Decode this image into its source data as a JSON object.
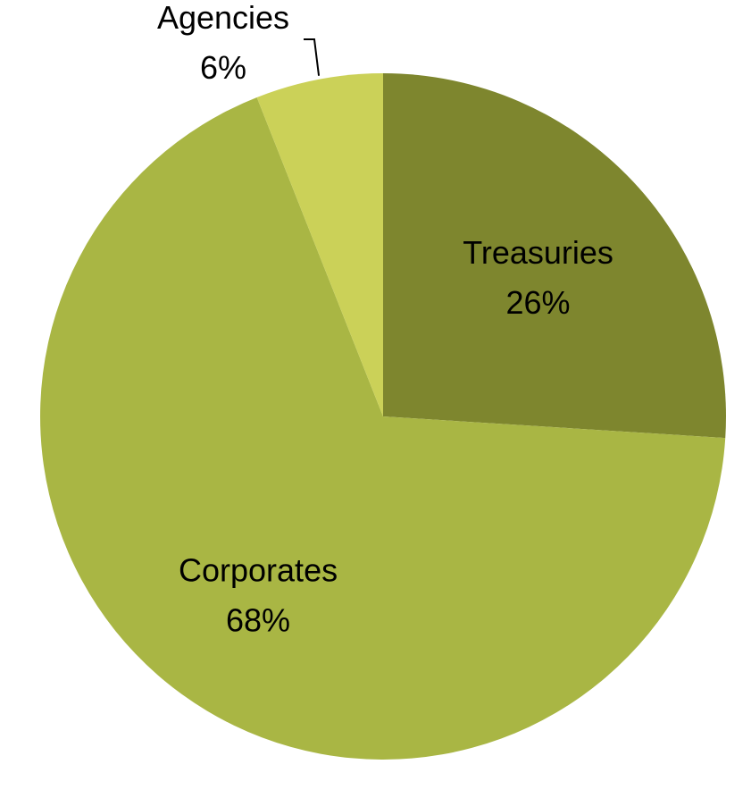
{
  "chart_data": {
    "type": "pie",
    "slices": [
      {
        "label": "Treasuries",
        "value": 26,
        "display": "26%",
        "color": "#7e862e"
      },
      {
        "label": "Corporates",
        "value": 68,
        "display": "68%",
        "color": "#a9b644"
      },
      {
        "label": "Agencies",
        "value": 6,
        "display": "6%",
        "color": "#cbd158"
      }
    ],
    "label_style": "category-and-percent",
    "legend": "none",
    "start_angle_deg": 0,
    "direction": "clockwise"
  }
}
